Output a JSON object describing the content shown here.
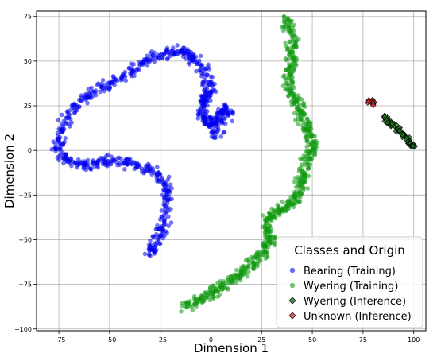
{
  "chart_data": {
    "type": "scatter",
    "title": "",
    "xlabel": "Dimension 1",
    "ylabel": "Dimension 2",
    "xlim": [
      -86,
      106
    ],
    "ylim": [
      -101,
      78
    ],
    "xticks": [
      -75,
      -50,
      -25,
      0,
      25,
      50,
      75,
      100
    ],
    "yticks": [
      -100,
      -75,
      -50,
      -25,
      0,
      25,
      50,
      75
    ],
    "grid": true,
    "legend": {
      "title": "Classes and Origin",
      "placement": "lower-right",
      "entries": [
        {
          "label": "Bearing (Training)",
          "color": "#0000ee",
          "marker": "circle"
        },
        {
          "label": "Wyering (Training)",
          "color": "#119911",
          "marker": "circle"
        },
        {
          "label": "Wyering (Inference)",
          "color": "#1f7a1f",
          "marker": "diamond"
        },
        {
          "label": "Unknown (Inference)",
          "color": "#ee3333",
          "marker": "diamond"
        }
      ]
    },
    "series": [
      {
        "name": "Bearing (Training)",
        "color": "#0000ee",
        "marker": "circle",
        "path": [
          [
            -31,
            -58
          ],
          [
            -29,
            -55
          ],
          [
            -26,
            -50
          ],
          [
            -24,
            -45
          ],
          [
            -23,
            -38
          ],
          [
            -22,
            -30
          ],
          [
            -21,
            -24
          ],
          [
            -22,
            -18
          ],
          [
            -26,
            -14
          ],
          [
            -31,
            -10
          ],
          [
            -36,
            -9
          ],
          [
            -41,
            -7
          ],
          [
            -47,
            -6
          ],
          [
            -53,
            -6
          ],
          [
            -58,
            -7
          ],
          [
            -63,
            -8
          ],
          [
            -68,
            -7
          ],
          [
            -73,
            -4
          ],
          [
            -76,
            1
          ],
          [
            -75,
            6
          ],
          [
            -73,
            13
          ],
          [
            -71,
            19
          ],
          [
            -67,
            25
          ],
          [
            -62,
            30
          ],
          [
            -57,
            33
          ],
          [
            -52,
            36
          ],
          [
            -46,
            40
          ],
          [
            -40,
            44
          ],
          [
            -35,
            48
          ],
          [
            -30,
            51
          ],
          [
            -25,
            53
          ],
          [
            -20,
            55
          ],
          [
            -16,
            56
          ],
          [
            -12,
            55
          ],
          [
            -9,
            52
          ],
          [
            -6,
            49
          ],
          [
            -3,
            44
          ],
          [
            -1,
            38
          ],
          [
            0,
            33
          ],
          [
            -2,
            30
          ],
          [
            -4,
            27
          ],
          [
            -5,
            23
          ],
          [
            -4,
            19
          ],
          [
            -2,
            16
          ],
          [
            0,
            14
          ],
          [
            2,
            16
          ],
          [
            4,
            20
          ],
          [
            6,
            24
          ],
          [
            8,
            22
          ],
          [
            5,
            12
          ],
          [
            1,
            9
          ]
        ]
      },
      {
        "name": "Wyering (Training)",
        "color": "#119911",
        "marker": "circle",
        "path": [
          [
            -13,
            -88
          ],
          [
            -10,
            -86
          ],
          [
            -6,
            -84
          ],
          [
            -2,
            -81
          ],
          [
            1,
            -79
          ],
          [
            4,
            -77
          ],
          [
            8,
            -75
          ],
          [
            11,
            -72
          ],
          [
            15,
            -69
          ],
          [
            18,
            -66
          ],
          [
            21,
            -63
          ],
          [
            24,
            -60
          ],
          [
            26,
            -57
          ],
          [
            28,
            -53
          ],
          [
            29,
            -50
          ],
          [
            28,
            -46
          ],
          [
            27,
            -42
          ],
          [
            28,
            -38
          ],
          [
            31,
            -35
          ],
          [
            34,
            -33
          ],
          [
            38,
            -31
          ],
          [
            40,
            -29
          ],
          [
            42,
            -26
          ],
          [
            44,
            -22
          ],
          [
            45,
            -17
          ],
          [
            46,
            -12
          ],
          [
            47,
            -7
          ],
          [
            48,
            -2
          ],
          [
            50,
            2
          ],
          [
            49,
            6
          ],
          [
            48,
            10
          ],
          [
            47,
            14
          ],
          [
            45,
            18
          ],
          [
            44,
            22
          ],
          [
            43,
            26
          ],
          [
            41,
            30
          ],
          [
            39,
            35
          ],
          [
            38,
            40
          ],
          [
            39,
            45
          ],
          [
            40,
            50
          ],
          [
            41,
            55
          ],
          [
            40,
            60
          ],
          [
            39,
            65
          ],
          [
            38,
            70
          ],
          [
            37,
            75
          ]
        ]
      },
      {
        "name": "Wyering (Inference)",
        "color": "#1f7a1f",
        "marker": "diamond",
        "path": [
          [
            85,
            19
          ],
          [
            87,
            17
          ],
          [
            89,
            15
          ],
          [
            91,
            13
          ],
          [
            93,
            11
          ],
          [
            95,
            9
          ],
          [
            97,
            6
          ],
          [
            98,
            4
          ],
          [
            99,
            3
          ],
          [
            100,
            3
          ]
        ]
      },
      {
        "name": "Unknown (Inference)",
        "color": "#ee3333",
        "marker": "diamond",
        "path": [
          [
            78,
            28
          ],
          [
            79,
            27.5
          ],
          [
            80,
            27
          ],
          [
            80.5,
            26.5
          ]
        ]
      }
    ]
  }
}
